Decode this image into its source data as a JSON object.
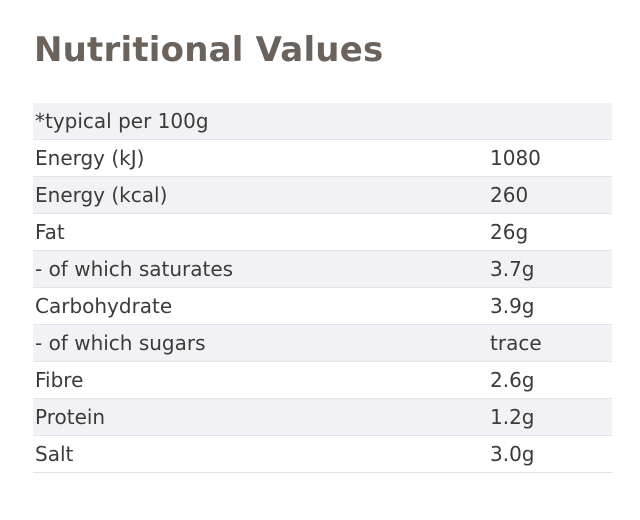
{
  "title": "Nutritional Values",
  "table": {
    "caption": "*typical per 100g",
    "rows": [
      [
        "Energy (kJ)",
        "1080"
      ],
      [
        "Energy (kcal)",
        "260"
      ],
      [
        "Fat",
        "26g"
      ],
      [
        "- of which saturates",
        "3.7g"
      ],
      [
        "Carbohydrate",
        "3.9g"
      ],
      [
        "- of which sugars",
        "trace"
      ],
      [
        "Fibre",
        "2.6g"
      ],
      [
        "Protein",
        "1.2g"
      ],
      [
        "Salt",
        "3.0g"
      ]
    ]
  }
}
